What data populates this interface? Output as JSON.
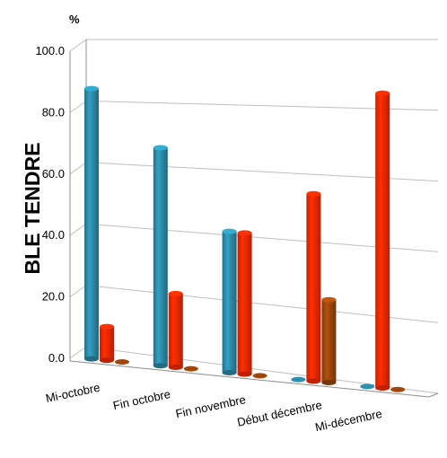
{
  "chart_data": {
    "type": "bar",
    "subtype": "3d-cylinder-clustered",
    "title": "",
    "unit_label": "%",
    "ylabel": "BLE TENDRE",
    "xlabel": "",
    "ylim": [
      0,
      100
    ],
    "yticks": [
      "0.0",
      "20.0",
      "40.0",
      "60.0",
      "80.0",
      "100.0"
    ],
    "grid": true,
    "legend": "none",
    "categories": [
      "Mi-octobre",
      "Fin octobre",
      "Fin novembre",
      "Début décembre",
      "Mi-décembre"
    ],
    "series": [
      {
        "color": "#2e8fae",
        "values": [
          88.0,
          71.0,
          46.0,
          0.0,
          0.0
        ]
      },
      {
        "color": "#ff2a00",
        "values": [
          11.0,
          24.0,
          46.0,
          61.0,
          96.0
        ]
      },
      {
        "color": "#a0480c",
        "values": [
          0.0,
          0.0,
          0.0,
          27.0,
          0.0
        ]
      }
    ]
  }
}
